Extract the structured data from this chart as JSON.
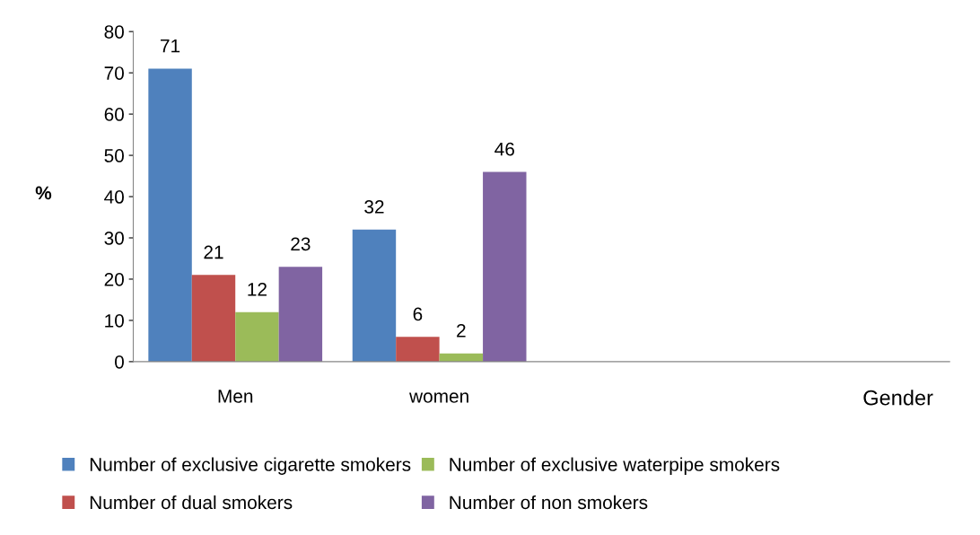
{
  "chart_data": {
    "type": "bar",
    "xlabel": "Gender",
    "ylabel": "%",
    "categories": [
      "Men",
      "women",
      null,
      null
    ],
    "series": [
      {
        "name": "Number of exclusive cigarette smokers",
        "color": "#4f81bd",
        "values": [
          71,
          32,
          null,
          null
        ]
      },
      {
        "name": "Number of dual smokers",
        "color": "#c0504d",
        "values": [
          21,
          6,
          null,
          null
        ]
      },
      {
        "name": "Number of exclusive waterpipe smokers",
        "color": "#9bbb59",
        "values": [
          12,
          2,
          null,
          null
        ]
      },
      {
        "name": "Number of non smokers",
        "color": "#8064a2",
        "values": [
          23,
          46,
          null,
          null
        ]
      }
    ],
    "ylim": [
      0,
      80
    ],
    "yticks": [
      0,
      10,
      20,
      30,
      40,
      50,
      60,
      70,
      80
    ],
    "data_labels": true,
    "legend": "bottom",
    "grid": false
  }
}
